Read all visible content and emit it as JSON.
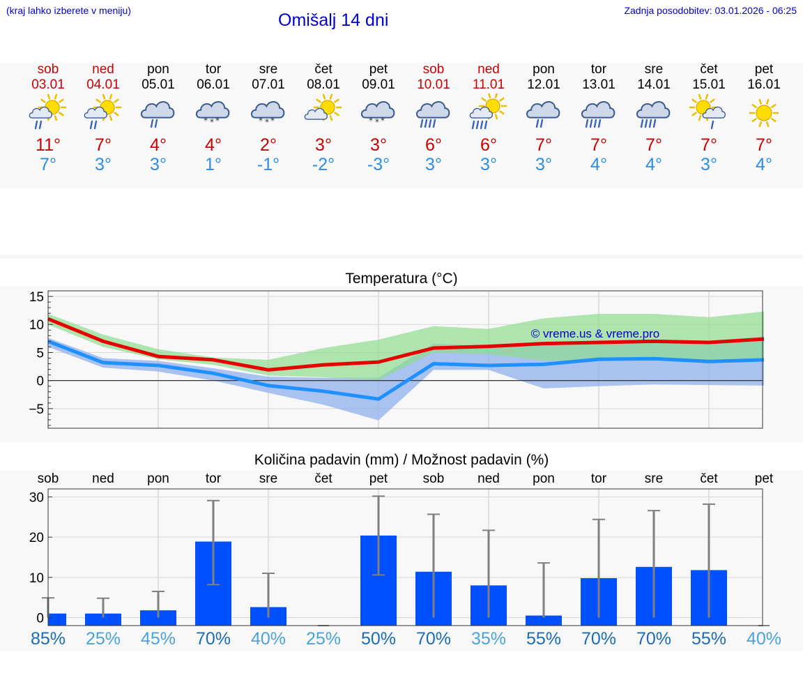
{
  "header": {
    "hint": "(kraj lahko izberete v meniju)",
    "title": "Omišalj 14 dni",
    "updated": "Zadnja posodobitev: 03.01.2026 - 06:25"
  },
  "days": [
    {
      "name": "sob",
      "date": "03.01",
      "weekend": true,
      "icon": "partly-sunny-rain",
      "max": "11°",
      "min": "7°"
    },
    {
      "name": "ned",
      "date": "04.01",
      "weekend": true,
      "icon": "partly-sunny-rain",
      "max": "7°",
      "min": "3°"
    },
    {
      "name": "pon",
      "date": "05.01",
      "weekend": false,
      "icon": "cloud-rain",
      "max": "4°",
      "min": "3°"
    },
    {
      "name": "tor",
      "date": "06.01",
      "weekend": false,
      "icon": "cloud-snow",
      "max": "4°",
      "min": "1°"
    },
    {
      "name": "sre",
      "date": "07.01",
      "weekend": false,
      "icon": "cloud-snow",
      "max": "2°",
      "min": "-1°"
    },
    {
      "name": "čet",
      "date": "08.01",
      "weekend": false,
      "icon": "sun-cloud",
      "max": "3°",
      "min": "-2°"
    },
    {
      "name": "pet",
      "date": "09.01",
      "weekend": false,
      "icon": "cloud-snow",
      "max": "3°",
      "min": "-3°"
    },
    {
      "name": "sob",
      "date": "10.01",
      "weekend": true,
      "icon": "cloud-heavy-rain",
      "max": "6°",
      "min": "3°"
    },
    {
      "name": "ned",
      "date": "11.01",
      "weekend": true,
      "icon": "sun-heavy-rain",
      "max": "6°",
      "min": "3°"
    },
    {
      "name": "pon",
      "date": "12.01",
      "weekend": false,
      "icon": "cloud-rain",
      "max": "7°",
      "min": "3°"
    },
    {
      "name": "tor",
      "date": "13.01",
      "weekend": false,
      "icon": "cloud-heavy-rain",
      "max": "7°",
      "min": "4°"
    },
    {
      "name": "sre",
      "date": "14.01",
      "weekend": false,
      "icon": "cloud-heavy-rain",
      "max": "7°",
      "min": "4°"
    },
    {
      "name": "čet",
      "date": "15.01",
      "weekend": false,
      "icon": "sun-cloud-rain",
      "max": "7°",
      "min": "3°"
    },
    {
      "name": "pet",
      "date": "16.01",
      "weekend": false,
      "icon": "sun",
      "max": "7°",
      "min": "4°"
    }
  ],
  "colors": {
    "max": "#e60000",
    "min": "#1e90ff",
    "green": "#8fdc8f",
    "blue": "#8fb0ee",
    "bar": "#0050ff",
    "err": "#808080"
  },
  "chart_data": [
    {
      "type": "line",
      "title": "Temperatura (°C)",
      "watermark": "© vreme.us & vreme.pro",
      "ylim": [
        -8.5,
        16
      ],
      "yticks": [
        15,
        10,
        5,
        0,
        -5
      ],
      "x": [
        0,
        1,
        2,
        3,
        4,
        5,
        6,
        7,
        8,
        9,
        10,
        11,
        12,
        13
      ],
      "series": [
        {
          "name": "max",
          "values": [
            11,
            7,
            4.3,
            3.7,
            1.9,
            2.8,
            3.3,
            5.8,
            6.1,
            6.6,
            6.8,
            7.0,
            6.8,
            7.4
          ]
        },
        {
          "name": "min",
          "values": [
            7,
            3.2,
            2.7,
            1.3,
            -0.9,
            -1.9,
            -3.3,
            3.0,
            2.7,
            2.9,
            3.8,
            3.9,
            3.4,
            3.7
          ]
        }
      ],
      "bands": [
        {
          "name": "max-range",
          "low": [
            10,
            6,
            3.8,
            2.8,
            0.9,
            0.6,
            0.1,
            5.0,
            4.7,
            3.6,
            3.6,
            3.8,
            3.3,
            3.4
          ],
          "high": [
            11.9,
            8.2,
            5.6,
            4.1,
            3.7,
            5.8,
            7.3,
            9.7,
            9.2,
            11.1,
            11.9,
            11.9,
            11.3,
            12.3
          ]
        },
        {
          "name": "min-range",
          "low": [
            6,
            2.3,
            1.6,
            0,
            -2.2,
            -4.3,
            -7.1,
            1.9,
            1.9,
            -1.4,
            -1.0,
            -0.7,
            -0.8,
            -0.9
          ],
          "high": [
            7.6,
            4.0,
            3.5,
            2.2,
            0.7,
            0.5,
            0.5,
            6.6,
            6.1,
            6.7,
            7.1,
            7.3,
            7.0,
            7.9
          ]
        }
      ]
    },
    {
      "type": "bar",
      "title": "Količina padavin (mm) / Možnost padavin (%)",
      "categories": [
        "sob",
        "ned",
        "pon",
        "tor",
        "sre",
        "čet",
        "pet",
        "sob",
        "ned",
        "pon",
        "tor",
        "sre",
        "čet",
        "pet"
      ],
      "ylim": [
        -2,
        32
      ],
      "yticks": [
        30,
        20,
        10,
        0
      ],
      "values": [
        1.0,
        1.0,
        1.8,
        18.9,
        2.6,
        0,
        20.4,
        11.4,
        8.0,
        0.5,
        9.8,
        12.6,
        11.8,
        0
      ],
      "err_low": [
        0,
        0,
        0,
        8.2,
        0,
        0,
        10.6,
        0,
        0,
        0,
        0,
        0,
        0,
        0
      ],
      "err_high": [
        4.9,
        4.8,
        6.5,
        29.1,
        11.0,
        0,
        30.2,
        25.7,
        21.7,
        13.6,
        24.4,
        26.6,
        28.2,
        0
      ],
      "probabilities": [
        "85%",
        "25%",
        "45%",
        "70%",
        "40%",
        "25%",
        "50%",
        "70%",
        "35%",
        "55%",
        "70%",
        "70%",
        "55%",
        "40%"
      ],
      "prob_shade": [
        "dark",
        "light",
        "light",
        "dark",
        "light",
        "light",
        "dark",
        "dark",
        "light",
        "dark",
        "dark",
        "dark",
        "dark",
        "light"
      ]
    }
  ]
}
